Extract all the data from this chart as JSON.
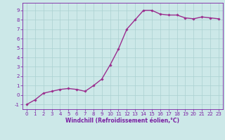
{
  "x": [
    0,
    1,
    2,
    3,
    4,
    5,
    6,
    7,
    8,
    9,
    10,
    11,
    12,
    13,
    14,
    15,
    16,
    17,
    18,
    19,
    20,
    21,
    22,
    23
  ],
  "y": [
    -1.0,
    -0.5,
    0.2,
    0.4,
    0.6,
    0.7,
    0.6,
    0.4,
    1.0,
    1.7,
    3.2,
    4.9,
    7.0,
    8.0,
    9.0,
    9.0,
    8.6,
    8.5,
    8.5,
    8.2,
    8.1,
    8.3,
    8.2,
    8.1
  ],
  "line_color": "#9b2d8e",
  "marker": "D",
  "marker_size": 1.8,
  "bg_color": "#cce8e8",
  "grid_color": "#aad0d0",
  "xlabel": "Windchill (Refroidissement éolien,°C)",
  "xlim": [
    -0.5,
    23.5
  ],
  "ylim": [
    -1.5,
    9.8
  ],
  "yticks": [
    -1,
    0,
    1,
    2,
    3,
    4,
    5,
    6,
    7,
    8,
    9
  ],
  "xticks": [
    0,
    1,
    2,
    3,
    4,
    5,
    6,
    7,
    8,
    9,
    10,
    11,
    12,
    13,
    14,
    15,
    16,
    17,
    18,
    19,
    20,
    21,
    22,
    23
  ],
  "label_color": "#7b1fa2",
  "xlabel_fontsize": 5.5,
  "tick_fontsize": 5.0,
  "linewidth": 1.0
}
